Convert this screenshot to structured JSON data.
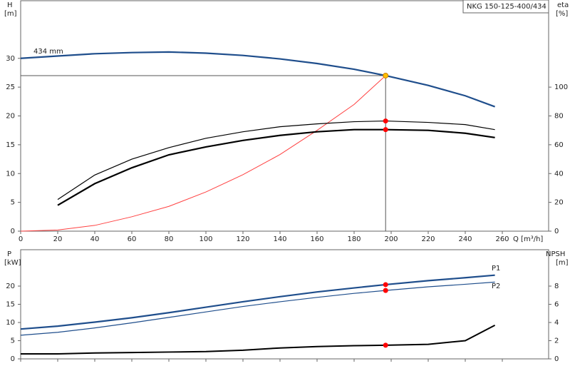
{
  "chart_data": [
    {
      "type": "line",
      "title": "NKG 150-125-400/434",
      "ylabel": "H",
      "yunit": "[m]",
      "y2label": "eta",
      "y2unit": "[%]",
      "xlabel": "Q [m³/h]",
      "xlim": [
        0,
        285
      ],
      "xticks": [
        0,
        20,
        40,
        60,
        80,
        100,
        120,
        140,
        160,
        180,
        200,
        220,
        240,
        260
      ],
      "ylim": [
        0,
        40
      ],
      "yticks": [
        0,
        5,
        10,
        15,
        20,
        25,
        30
      ],
      "y2lim": [
        0,
        160
      ],
      "y2ticks": [
        0,
        20,
        40,
        60,
        80,
        100
      ],
      "series": [
        {
          "name": "434 mm",
          "color": "#1f4e8c",
          "x": [
            0,
            20,
            40,
            60,
            80,
            100,
            120,
            140,
            160,
            180,
            197,
            220,
            240,
            256
          ],
          "values": [
            30,
            30.4,
            30.8,
            31.0,
            31.1,
            30.9,
            30.5,
            29.9,
            29.1,
            28.1,
            27,
            25.3,
            23.5,
            21.6
          ]
        },
        {
          "color": "#ff4040",
          "x": [
            0,
            20,
            40,
            60,
            80,
            100,
            120,
            140,
            160,
            180,
            197
          ],
          "values": [
            0,
            0.2,
            1.0,
            2.5,
            4.3,
            6.8,
            9.8,
            13.3,
            17.5,
            22,
            27
          ]
        },
        {
          "color": "#000000",
          "axis": "y2",
          "x": [
            20,
            40,
            60,
            80,
            100,
            120,
            140,
            160,
            180,
            197,
            220,
            240,
            256
          ],
          "values": [
            22,
            39,
            50,
            58,
            64.5,
            69,
            72.5,
            74.5,
            76,
            76.5,
            75.5,
            74,
            70.5
          ]
        },
        {
          "color": "#000000",
          "axis": "y2",
          "x": [
            20,
            40,
            60,
            80,
            100,
            120,
            140,
            160,
            180,
            197,
            220,
            240,
            256
          ],
          "values": [
            18,
            33,
            44,
            53,
            58.5,
            63,
            66.5,
            69,
            70.5,
            70.5,
            70,
            68,
            65
          ]
        }
      ],
      "points": [
        {
          "x": 197,
          "y": 27,
          "color": "#ffc000"
        },
        {
          "x": 197,
          "y": 76.5,
          "axis": "y2",
          "color": "#ff0000"
        },
        {
          "x": 197,
          "y": 70.5,
          "axis": "y2",
          "color": "#ff0000"
        }
      ]
    },
    {
      "type": "line",
      "ylabel": "P",
      "yunit": "[kW]",
      "y2label": "NPSH",
      "y2unit": "[m]",
      "xlim": [
        0,
        285
      ],
      "xticks": [
        0,
        20,
        40,
        60,
        80,
        100,
        120,
        140,
        160,
        180,
        200,
        220,
        240,
        260
      ],
      "ylim": [
        0,
        30
      ],
      "yticks": [
        0,
        5,
        10,
        15,
        20
      ],
      "y2lim": [
        0,
        12
      ],
      "y2ticks": [
        0,
        2,
        4,
        6,
        8
      ],
      "series": [
        {
          "name": "P1",
          "color": "#1f4e8c",
          "x": [
            0,
            20,
            40,
            60,
            80,
            100,
            120,
            140,
            160,
            180,
            197,
            220,
            240,
            256
          ],
          "values": [
            8.2,
            9.0,
            10.1,
            11.3,
            12.7,
            14.2,
            15.7,
            17.1,
            18.4,
            19.5,
            20.4,
            21.5,
            22.3,
            23
          ]
        },
        {
          "name": "P2",
          "color": "#1f4e8c",
          "x": [
            0,
            20,
            40,
            60,
            80,
            100,
            120,
            140,
            160,
            180,
            197,
            220,
            240,
            256
          ],
          "values": [
            6.5,
            7.3,
            8.5,
            9.9,
            11.4,
            12.9,
            14.4,
            15.7,
            16.9,
            18,
            18.8,
            19.8,
            20.5,
            21.1
          ]
        },
        {
          "color": "#000000",
          "axis": "y2",
          "x": [
            0,
            20,
            40,
            60,
            80,
            100,
            120,
            140,
            160,
            180,
            197,
            220,
            240,
            256
          ],
          "values": [
            0.55,
            0.55,
            0.65,
            0.7,
            0.75,
            0.8,
            0.95,
            1.2,
            1.35,
            1.45,
            1.5,
            1.6,
            2.0,
            3.7
          ]
        }
      ],
      "points": [
        {
          "x": 197,
          "y": 20.4,
          "color": "#ff0000"
        },
        {
          "x": 197,
          "y": 18.8,
          "color": "#ff0000"
        },
        {
          "x": 197,
          "y": 1.5,
          "axis": "y2",
          "color": "#ff0000"
        }
      ]
    }
  ]
}
